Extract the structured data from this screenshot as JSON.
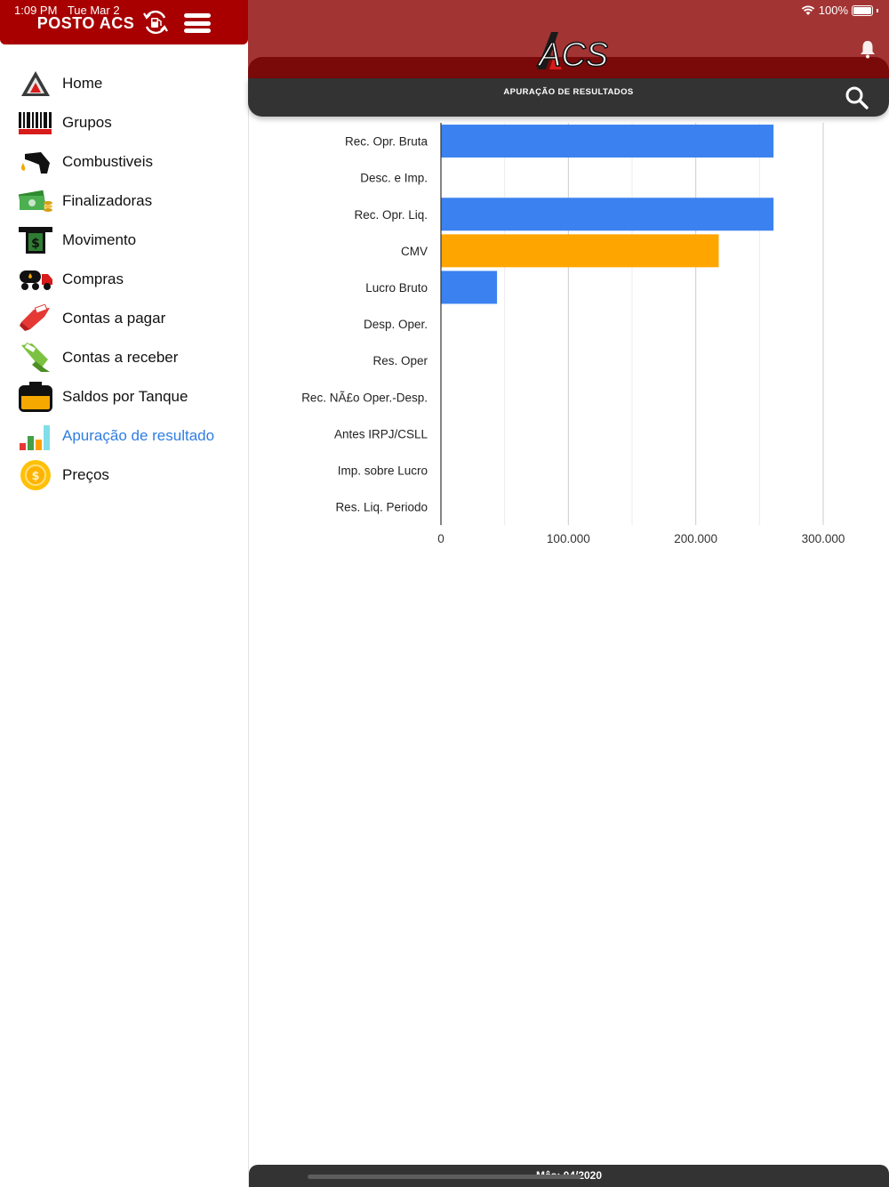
{
  "status_bar": {
    "time": "1:09 PM",
    "date": "Tue Mar 2",
    "battery": "100%"
  },
  "sidebar": {
    "brand": "POSTO ACS",
    "items": [
      {
        "label": "Home",
        "icon": "home-icon"
      },
      {
        "label": "Grupos",
        "icon": "barcode-icon"
      },
      {
        "label": "Combustiveis",
        "icon": "fuel-nozzle-icon"
      },
      {
        "label": "Finalizadoras",
        "icon": "money-icon"
      },
      {
        "label": "Movimento",
        "icon": "atm-icon"
      },
      {
        "label": "Compras",
        "icon": "tanker-truck-icon"
      },
      {
        "label": "Contas a pagar",
        "icon": "pay-icon"
      },
      {
        "label": "Contas a receber",
        "icon": "receive-icon"
      },
      {
        "label": "Saldos por Tanque",
        "icon": "tank-icon"
      },
      {
        "label": "Apuração de resultado",
        "icon": "bar-chart-icon",
        "active": true
      },
      {
        "label": "Preços",
        "icon": "coin-icon"
      }
    ]
  },
  "header": {
    "logo_text": "ACS",
    "title": "APURAÇÃO DE RESULTADOS"
  },
  "chart_data": {
    "type": "bar",
    "orientation": "horizontal",
    "categories": [
      "Rec. Opr. Bruta",
      "Desc. e Imp.",
      "Rec. Opr. Liq.",
      "CMV",
      "Lucro Bruto",
      "Desp. Oper.",
      "Res. Oper",
      "Rec. NÃ£o Oper.-Desp.",
      "Antes IRPJ/CSLL",
      "Imp. sobre Lucro",
      "Res. Liq. Periodo"
    ],
    "values": [
      261000,
      0,
      261000,
      218000,
      44000,
      0,
      0,
      0,
      0,
      0,
      0
    ],
    "bar_colors": [
      "#3b82f0",
      "#3b82f0",
      "#3b82f0",
      "#ffa500",
      "#3b82f0",
      "#3b82f0",
      "#3b82f0",
      "#3b82f0",
      "#3b82f0",
      "#3b82f0",
      "#3b82f0"
    ],
    "xlim": [
      0,
      300000
    ],
    "xticks": [
      "0",
      "100.000",
      "200.000",
      "300.000"
    ],
    "grid": true
  },
  "footer": {
    "text": "Mês: 04/2020"
  },
  "colors": {
    "header_red": "#a80000",
    "band_red": "#a33434",
    "dark_red": "#7a0a0a",
    "toolbar": "#333333",
    "active": "#2f7de1"
  }
}
